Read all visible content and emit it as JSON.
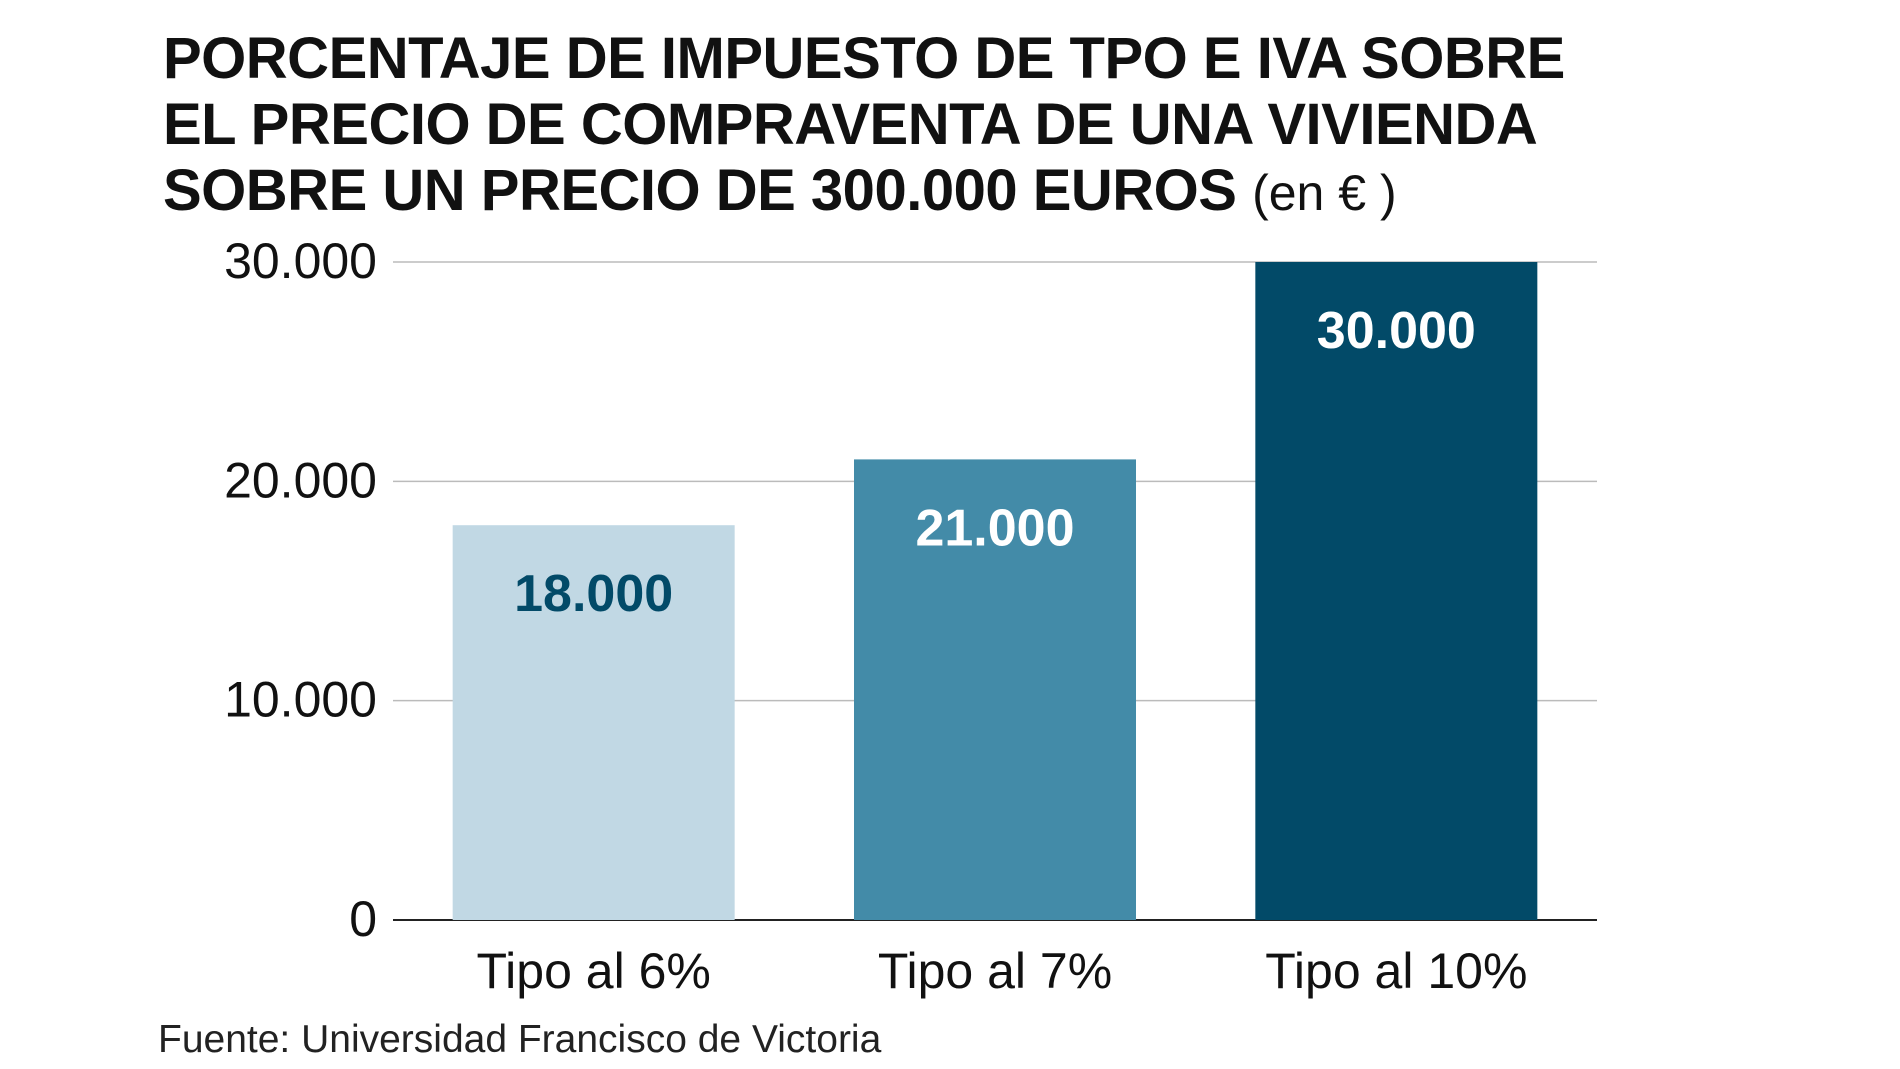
{
  "title": {
    "lines": [
      "PORCENTAJE DE IMPUESTO DE TPO E IVA SOBRE",
      "EL PRECIO DE COMPRAVENTA DE UNA VIVIENDA",
      "SOBRE UN PRECIO DE 300.000 EUROS"
    ],
    "unit": "(en € )"
  },
  "source": "Fuente: Universidad Francisco de Victoria",
  "chart_data": {
    "type": "bar",
    "categories": [
      "Tipo al 6%",
      "Tipo al 7%",
      "Tipo al 10%"
    ],
    "values": [
      18000,
      21000,
      30000
    ],
    "value_labels": [
      "18.000",
      "21.000",
      "30.000"
    ],
    "yticks": [
      0,
      10000,
      20000,
      30000
    ],
    "ytick_labels": [
      "0",
      "10.000",
      "20.000",
      "30.000"
    ],
    "ylim": [
      0,
      30000
    ],
    "grid": true,
    "bar_colors": [
      "#c1d8e4",
      "#438ba8",
      "#024a68"
    ],
    "label_colors": [
      "#024a68",
      "#ffffff",
      "#ffffff"
    ]
  }
}
